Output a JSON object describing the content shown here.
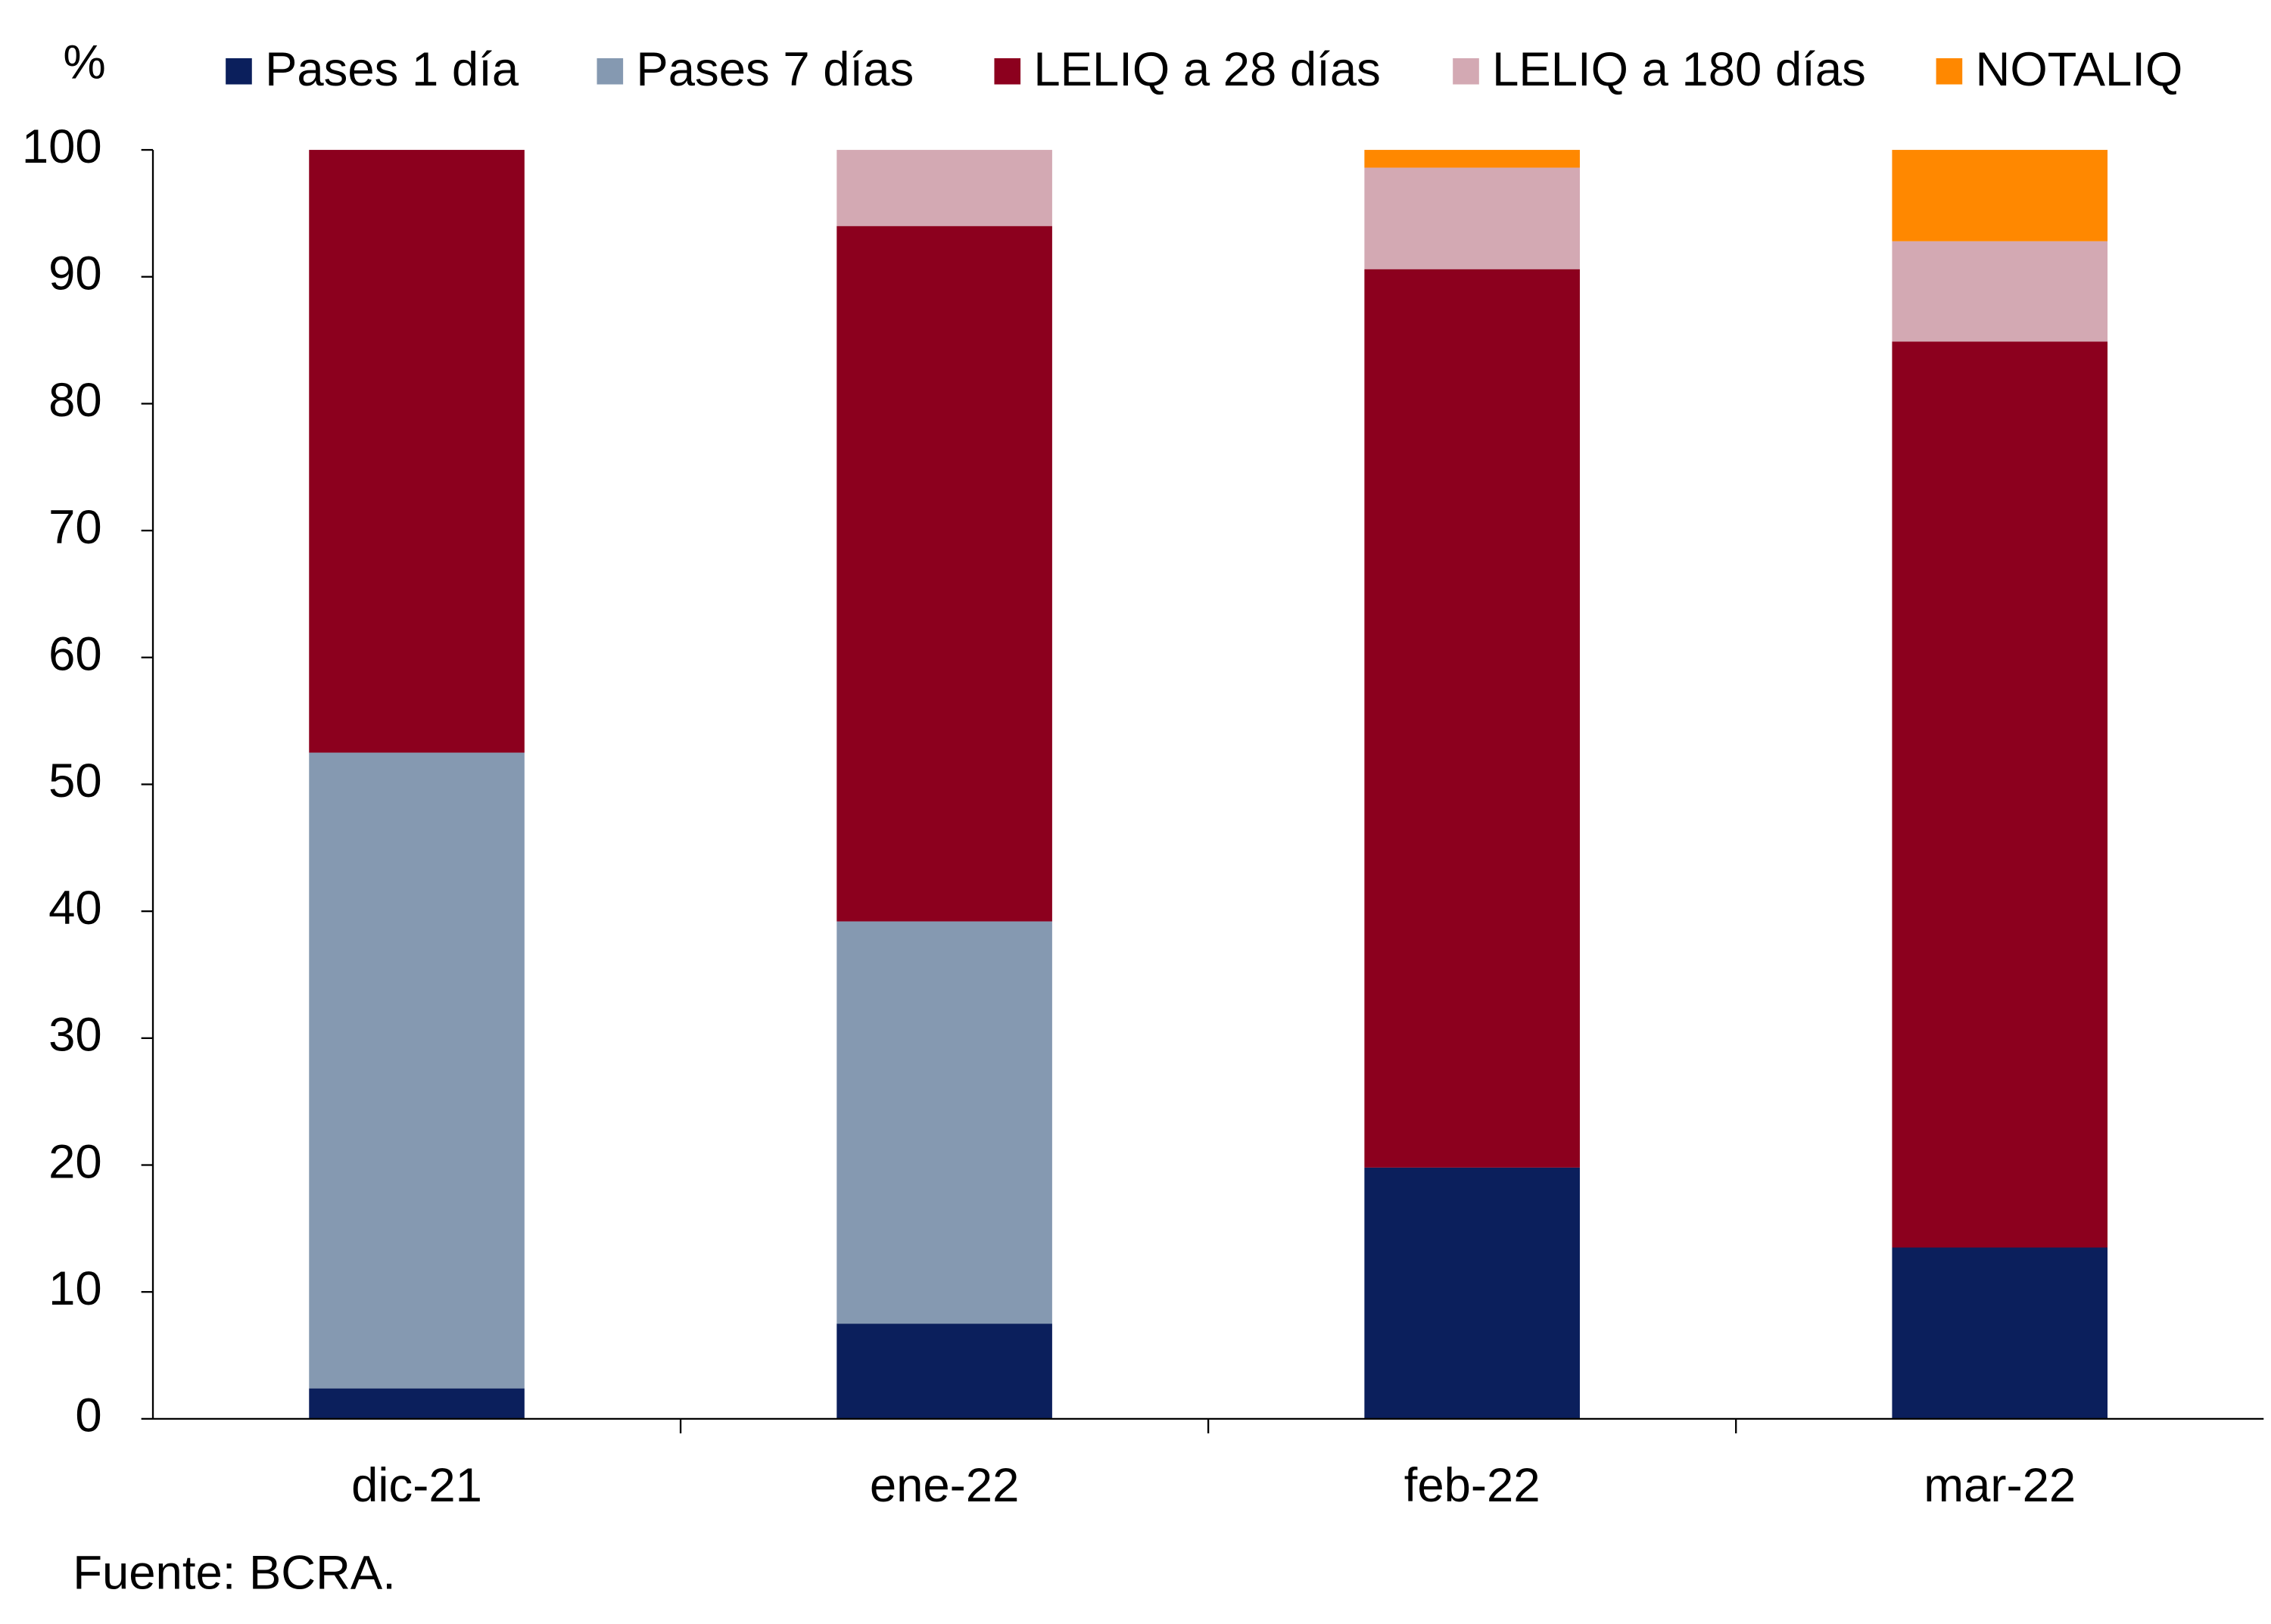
{
  "chart_data": {
    "type": "stacked-bar",
    "y_unit": "%",
    "source": "Fuente: BCRA.",
    "categories": [
      "dic-21",
      "ene-22",
      "feb-22",
      "mar-22"
    ],
    "series": [
      {
        "name": "Pases 1 día",
        "color": "#0b1f5c",
        "values": [
          2.4,
          7.5,
          19.8,
          13.5
        ]
      },
      {
        "name": "Pases 7 días",
        "color": "#8599b1",
        "values": [
          50.1,
          31.7,
          0,
          0
        ]
      },
      {
        "name": "LELIQ a 28 días",
        "color": "#8c001e",
        "values": [
          47.5,
          54.8,
          70.8,
          71.4
        ]
      },
      {
        "name": "LELIQ a 180 días",
        "color": "#d3a9b3",
        "values": [
          0,
          6.0,
          8.0,
          7.9
        ]
      },
      {
        "name": "NOTALIQ",
        "color": "#ff8800",
        "values": [
          0,
          0,
          1.4,
          7.2
        ]
      }
    ],
    "ylim": [
      0,
      100
    ],
    "yticks": [
      0,
      10,
      20,
      30,
      40,
      50,
      60,
      70,
      80,
      90,
      100
    ],
    "legend": "top"
  }
}
